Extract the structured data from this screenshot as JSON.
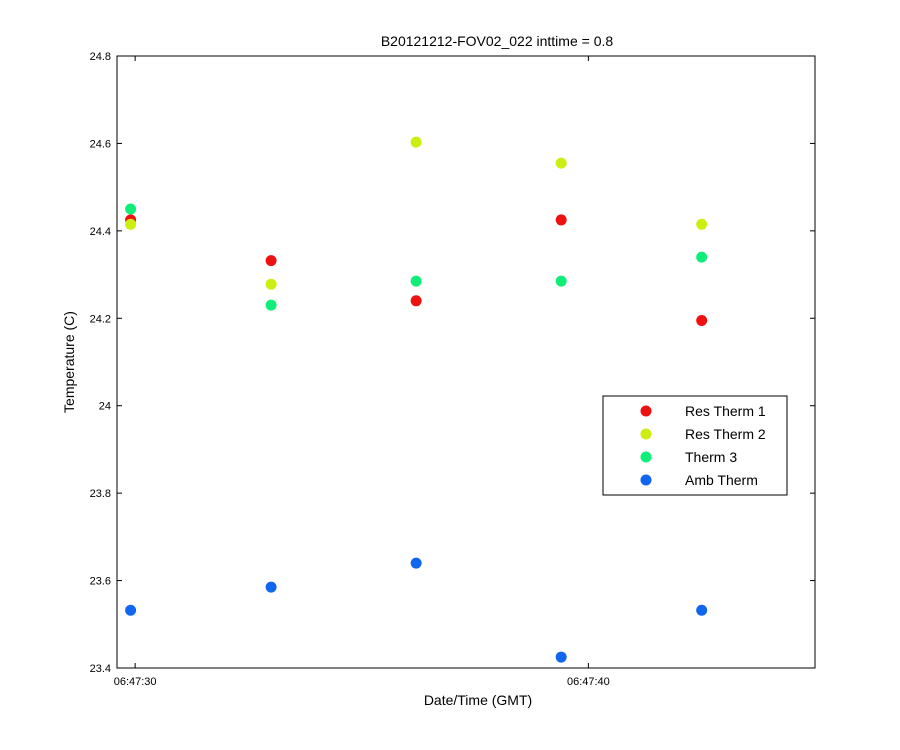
{
  "chart_data": {
    "type": "scatter",
    "title": "B20121212-FOV02_022 inttime = 0.8",
    "xlabel": "Date/Time (GMT)",
    "ylabel": "Temperature (C)",
    "x_unit": "time",
    "xlim": [
      "06:47:29.6",
      "06:47:45.0"
    ],
    "ylim": [
      23.4,
      24.8
    ],
    "x_ticks": [
      "06:47:30",
      "06:47:40"
    ],
    "y_ticks": [
      "23.4",
      "23.6",
      "23.8",
      "24",
      "24.2",
      "24.4",
      "24.6",
      "24.8"
    ],
    "grid": false,
    "legend_position": "right",
    "x": [
      "06:47:29.9",
      "06:47:33.0",
      "06:47:36.2",
      "06:47:39.4",
      "06:47:42.5"
    ],
    "series": [
      {
        "name": "Res Therm 1",
        "color": "#ee1111",
        "values": [
          24.425,
          24.332,
          24.24,
          24.425,
          24.195
        ]
      },
      {
        "name": "Res Therm 2",
        "color": "#ccee11",
        "values": [
          24.415,
          24.278,
          24.603,
          24.555,
          24.415
        ]
      },
      {
        "name": "Therm 3",
        "color": "#11ee77",
        "values": [
          24.45,
          24.23,
          24.285,
          24.285,
          24.34
        ]
      },
      {
        "name": "Amb Therm",
        "color": "#1166ee",
        "values": [
          23.532,
          23.585,
          23.64,
          23.425,
          23.532
        ]
      }
    ]
  }
}
